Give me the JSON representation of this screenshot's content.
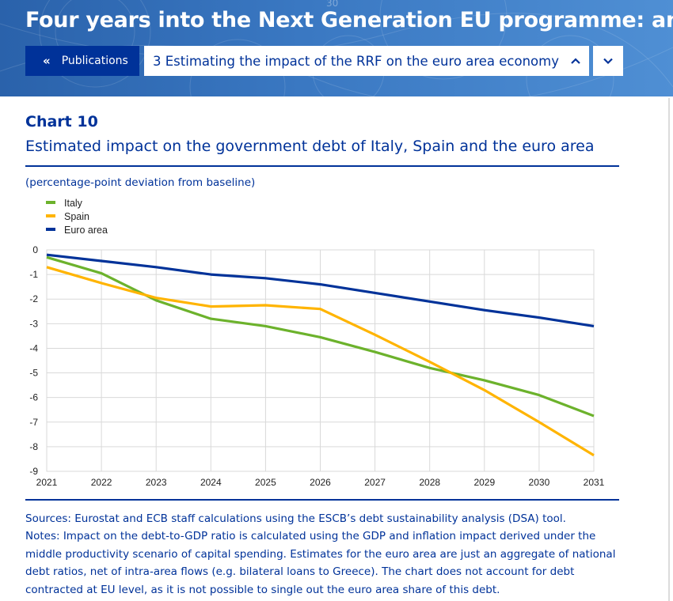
{
  "header": {
    "doc_title": "Four years into the Next Generation EU programme: an…",
    "publications_label": "Publications",
    "section_selected": "3 Estimating the impact of the RRF on the euro area economy",
    "bg_number": "30"
  },
  "chart_meta": {
    "number": "Chart 10",
    "title": "Estimated impact on the government debt of Italy, Spain and the euro area",
    "unit": "(percentage-point deviation from baseline)"
  },
  "chart_data": {
    "type": "line",
    "title": "Estimated impact on the government debt of Italy, Spain and the euro area",
    "ylabel": "percentage-point deviation from baseline",
    "x": [
      "2021",
      "2022",
      "2023",
      "2024",
      "2025",
      "2026",
      "2027",
      "2028",
      "2029",
      "2030",
      "2031"
    ],
    "ylim": [
      -9,
      0
    ],
    "yticks": [
      "0",
      "-1",
      "-2",
      "-3",
      "-4",
      "-5",
      "-6",
      "-7",
      "-8",
      "-9"
    ],
    "legend_position": "top-left",
    "series": [
      {
        "name": "Italy",
        "color": "#6cb22c",
        "values": [
          -0.3,
          -0.95,
          -2.05,
          -2.8,
          -3.1,
          -3.55,
          -4.15,
          -4.8,
          -5.3,
          -5.9,
          -6.75
        ]
      },
      {
        "name": "Spain",
        "color": "#ffb400",
        "values": [
          -0.7,
          -1.35,
          -1.95,
          -2.3,
          -2.25,
          -2.4,
          -3.45,
          -4.55,
          -5.7,
          -7.0,
          -8.35
        ]
      },
      {
        "name": "Euro area",
        "color": "#003299",
        "values": [
          -0.2,
          -0.45,
          -0.7,
          -1.0,
          -1.15,
          -1.4,
          -1.75,
          -2.1,
          -2.45,
          -2.75,
          -3.1
        ]
      }
    ]
  },
  "footer": {
    "sources": "Sources: Eurostat and ECB staff calculations using the ESCB’s debt sustainability analysis (DSA) tool.",
    "notes": "Notes: Impact on the debt-to-GDP ratio is calculated using the GDP and inflation impact derived under the middle productivity scenario of capital spending. Estimates for the euro area are just an aggregate of national debt ratios, net of intra-area flows (e.g. bilateral loans to Greece). The chart does not account for debt contracted at EU level, as it is not possible to single out the euro area share of this debt."
  }
}
